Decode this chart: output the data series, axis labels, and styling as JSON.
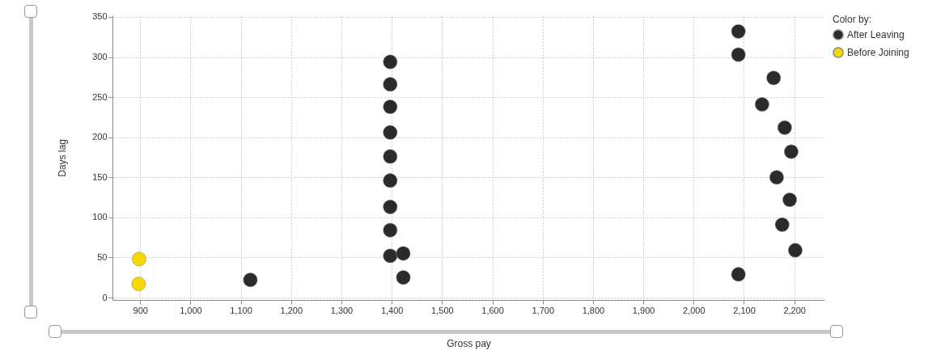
{
  "chart_data": {
    "type": "scatter",
    "xlabel": "Gross pay",
    "ylabel": "Days lag",
    "legend_title": "Color by:",
    "legend": "top right",
    "grid": true,
    "marker": "circle",
    "xlim": [
      845,
      2260
    ],
    "xticks": [
      {
        "value": 900,
        "label": "900"
      },
      {
        "value": 1000,
        "label": "1,000"
      },
      {
        "value": 1100,
        "label": "1,100"
      },
      {
        "value": 1200,
        "label": "1,200"
      },
      {
        "value": 1300,
        "label": "1,300"
      },
      {
        "value": 1400,
        "label": "1,400"
      },
      {
        "value": 1500,
        "label": "1,500"
      },
      {
        "value": 1600,
        "label": "1,600"
      },
      {
        "value": 1700,
        "label": "1,700"
      },
      {
        "value": 1800,
        "label": "1,800"
      },
      {
        "value": 1900,
        "label": "1,900"
      },
      {
        "value": 2000,
        "label": "2,000"
      },
      {
        "value": 2100,
        "label": "2,100"
      },
      {
        "value": 2200,
        "label": "2,200"
      }
    ],
    "ylim": [
      -3,
      352
    ],
    "yticks": [
      0,
      50,
      100,
      150,
      200,
      250,
      300,
      350
    ],
    "series": [
      {
        "name": "After Leaving",
        "color": "#2b2b2b",
        "x": [
          1119,
          1397,
          1397,
          1397,
          1397,
          1397,
          1397,
          1397,
          1397,
          1397,
          1423,
          1423,
          2089,
          2089,
          2159,
          2136,
          2181,
          2194,
          2165,
          2191,
          2176,
          2202,
          2089
        ],
        "values": [
          22,
          294,
          266,
          238,
          206,
          176,
          146,
          113,
          84,
          52,
          55,
          25,
          332,
          303,
          274,
          241,
          212,
          182,
          150,
          122,
          91,
          59,
          29
        ]
      },
      {
        "name": "Before Joining",
        "color": "#f5d800",
        "x": [
          898,
          897
        ],
        "values": [
          48,
          17
        ]
      }
    ]
  }
}
